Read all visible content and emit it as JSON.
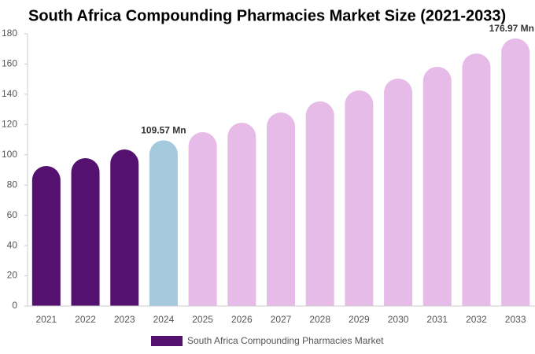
{
  "chart_data": {
    "type": "bar",
    "title": "South Africa Compounding Pharmacies Market Size (2021-2033)",
    "categories": [
      "2021",
      "2022",
      "2023",
      "2024",
      "2025",
      "2026",
      "2027",
      "2028",
      "2029",
      "2030",
      "2031",
      "2032",
      "2033"
    ],
    "series": [
      {
        "name": "South Africa Compounding Pharmacies Market",
        "color": "#55116f",
        "values": [
          92.6,
          97.8,
          103.5,
          109.57,
          115,
          121.2,
          128,
          135.3,
          142.6,
          150.4,
          158.2,
          167,
          176.97
        ],
        "value_labels": [
          null,
          null,
          null,
          "109.57 Mn",
          null,
          null,
          null,
          null,
          null,
          null,
          null,
          null,
          "176.97 Mn"
        ],
        "colors": [
          "#55116f",
          "#55116f",
          "#55116f",
          "#a4c9dd",
          "#e6bbe8",
          "#e6bbe8",
          "#e6bbe8",
          "#e6bbe8",
          "#e6bbe8",
          "#e6bbe8",
          "#e6bbe8",
          "#e6bbe8",
          "#e6bbe8"
        ]
      }
    ],
    "ylim": [
      0,
      180
    ],
    "yticks": [
      0,
      20,
      40,
      60,
      80,
      100,
      120,
      140,
      160,
      180
    ],
    "grid": false
  }
}
